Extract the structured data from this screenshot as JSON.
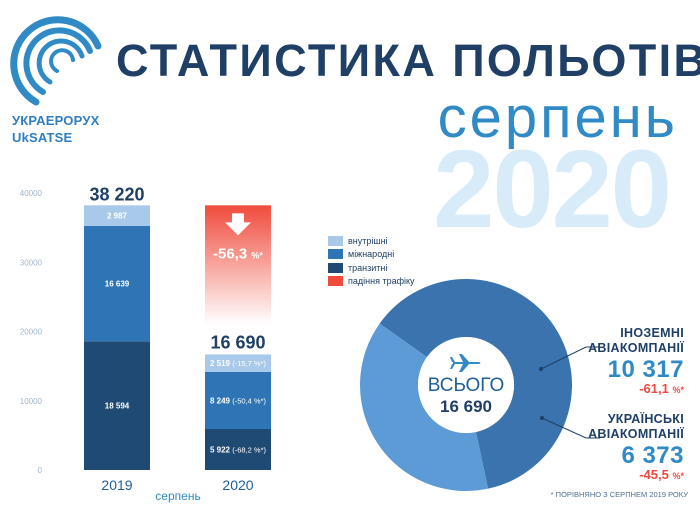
{
  "header": {
    "logo_name": "УКРАЕРОРУХ",
    "logo_name_en": "UkSATSE",
    "title": "СТАТИСТИКА ПОЛЬОТІВ",
    "month": "серпень",
    "year": "2020"
  },
  "colors": {
    "transit": "#1f4a73",
    "international": "#2f74b5",
    "domestic": "#a8c9ea",
    "decline": "#f04b3c",
    "donut_foreign": "#3a73ae",
    "donut_ukrainian": "#5d9bd7"
  },
  "chart_data": [
    {
      "type": "bar",
      "stacked": true,
      "categories": [
        "2019",
        "2020"
      ],
      "series": [
        {
          "name": "транзитні",
          "values": [
            18594,
            5922
          ]
        },
        {
          "name": "міжнародні",
          "values": [
            16639,
            8249
          ]
        },
        {
          "name": "внутрішні",
          "values": [
            2987,
            2519
          ]
        }
      ],
      "totals": [
        "38 220",
        "16 690"
      ],
      "data_labels": {
        "транзитні": [
          "18 594",
          "5 922"
        ],
        "міжнародні": [
          "16 639",
          "8 249"
        ],
        "внутрішні": [
          "2 987",
          "2 519"
        ]
      },
      "changes": {
        "транзитні": "(-68,2 %*)",
        "міжнародні": "(-50,4 %*)",
        "внутрішні": "(-15,7 %*)"
      },
      "decline": {
        "name": "падіння трафіку",
        "value": 38220,
        "label": "-56,3",
        "unit": "%*"
      },
      "xlabel": "серпень",
      "ylim": [
        0,
        40000
      ],
      "yticks": [
        "0",
        "10000",
        "20000",
        "30000",
        "40000"
      ],
      "legend": [
        "внутрішні",
        "міжнародні",
        "транзитні",
        "падіння трафіку"
      ],
      "legend_position": "right"
    },
    {
      "type": "pie",
      "donut": true,
      "labels": [
        "ІНОЗЕМНІ АВІАКОМПАНІЇ",
        "УКРАЇНСЬКІ АВІАКОМПАНІЇ"
      ],
      "values": [
        10317,
        6373
      ],
      "center_label": "ВСЬОГО",
      "center_value": "16 690"
    }
  ],
  "donut_info": {
    "foreign": {
      "line1": "ІНОЗЕМНІ",
      "line2": "АВІАКОМПАНІЇ",
      "value": "10 317",
      "change": "-61,1",
      "unit": "%*"
    },
    "ukrainian": {
      "line1": "УКРАЇНСЬКІ",
      "line2": "АВІАКОМПАНІЇ",
      "value": "6 373",
      "change": "-45,5",
      "unit": "%*"
    }
  },
  "icons": {
    "center": "airplane-icon",
    "decline": "arrow-down-icon"
  },
  "footnote": "* ПОРІВНЯНО З СЕРПНЕМ 2019 РОКУ"
}
